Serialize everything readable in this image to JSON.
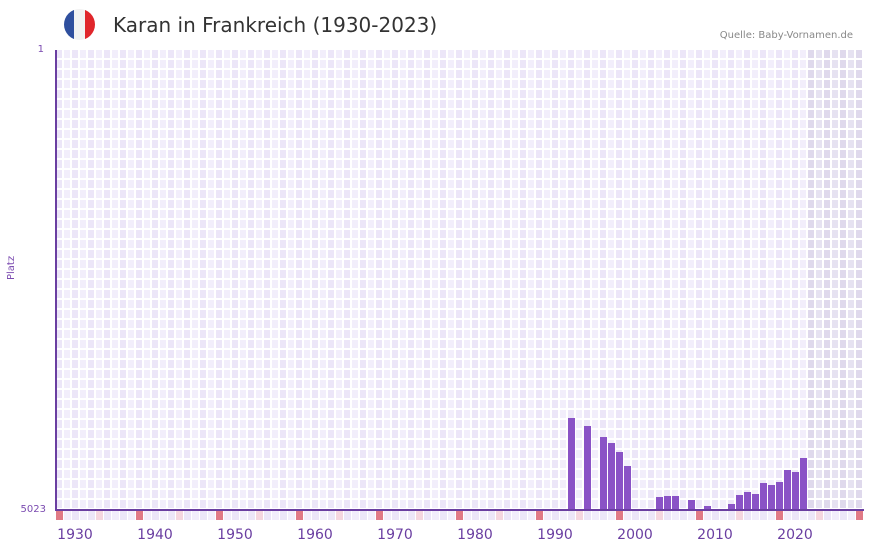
{
  "header": {
    "title": "Karan in Frankreich (1930-2023)",
    "source": "Quelle: Baby-Vornamen.de",
    "flag": {
      "colors": [
        "#2f4f9e",
        "#f2f2f2",
        "#e0262b"
      ]
    }
  },
  "colors": {
    "bar": "#8a53c6",
    "axis": "#6a3ea1",
    "decade_mark": "#e07a86",
    "half_decade_mark": "#f5d6df",
    "future_shade": "#e3dff0"
  },
  "chart_data": {
    "type": "bar",
    "title": "Karan in Frankreich (1930-2023)",
    "xlabel": "",
    "ylabel": "Platz",
    "y_inverted": true,
    "ylim": [
      5023,
      1
    ],
    "xlim": [
      1928,
      2028
    ],
    "ytick_labels": [
      "1",
      "5023"
    ],
    "xtick_labels": [
      "1930",
      "1940",
      "1950",
      "1960",
      "1970",
      "1980",
      "1990",
      "2000",
      "2010",
      "2020"
    ],
    "grid": true,
    "legend": null,
    "shaded_future_from": 2022,
    "x": [
      1992,
      1994,
      1996,
      1997,
      1998,
      1999,
      2003,
      2004,
      2005,
      2007,
      2009,
      2012,
      2013,
      2014,
      2015,
      2016,
      2017,
      2018,
      2019,
      2020,
      2021
    ],
    "values": [
      4018,
      4106,
      4226,
      4291,
      4390,
      4543,
      4881,
      4870,
      4870,
      4914,
      4979,
      4957,
      4859,
      4826,
      4848,
      4728,
      4750,
      4717,
      4586,
      4608,
      4455
    ]
  },
  "axis": {
    "ylabel": "Platz",
    "ytop": "1",
    "ybottom": "5023"
  }
}
